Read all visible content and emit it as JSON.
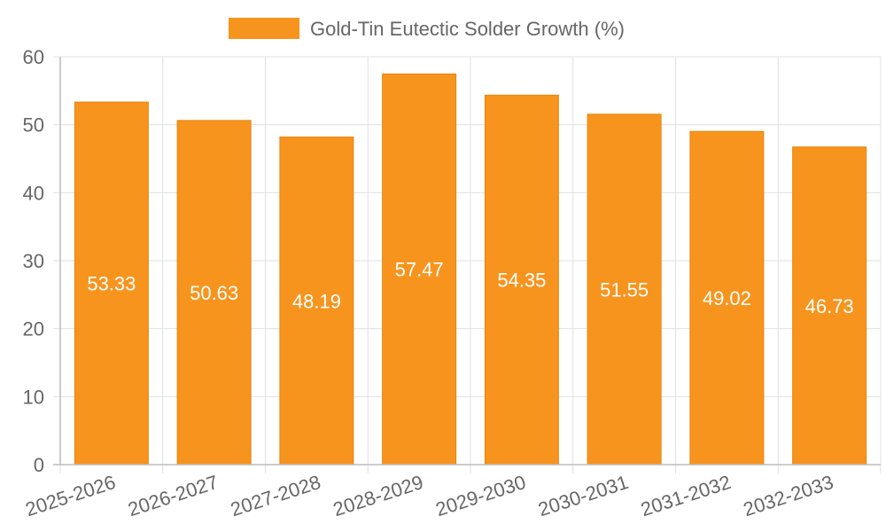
{
  "chart_data": {
    "type": "bar",
    "categories": [
      "2025-2026",
      "2026-2027",
      "2027-2028",
      "2028-2029",
      "2029-2030",
      "2030-2031",
      "2031-2032",
      "2032-2033"
    ],
    "series": [
      {
        "name": "Gold-Tin Eutectic Solder Growth (%)",
        "values": [
          53.33,
          50.63,
          48.19,
          57.47,
          54.35,
          51.55,
          49.02,
          46.73
        ],
        "color": "#f7941e"
      }
    ],
    "title": "",
    "xlabel": "",
    "ylabel": "",
    "ylim": [
      0,
      60
    ],
    "yticks": [
      0,
      10,
      20,
      30,
      40,
      50,
      60
    ],
    "grid": true,
    "legend": "top-center",
    "data_labels": true,
    "colors": {
      "grid": "#e0e0e0",
      "axis": "#bbbbbb",
      "text": "#666666",
      "label": "#ffffff"
    }
  }
}
